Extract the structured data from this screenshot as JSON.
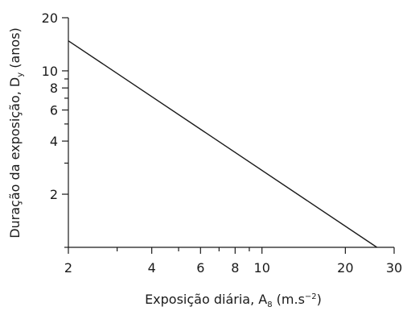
{
  "chart_data": {
    "type": "line",
    "x_scale": "log",
    "y_scale": "log",
    "xlim": [
      2,
      30
    ],
    "ylim": [
      1,
      20
    ],
    "x_ticks": [
      2,
      3,
      4,
      5,
      6,
      7,
      8,
      9,
      10,
      20,
      30
    ],
    "x_tick_labels": [
      "2",
      "",
      "4",
      "",
      "6",
      "",
      "8",
      "",
      "10",
      "20",
      "30"
    ],
    "y_ticks": [
      1,
      2,
      3,
      4,
      5,
      6,
      7,
      8,
      9,
      10,
      20
    ],
    "y_tick_labels": [
      "",
      "2",
      "",
      "4",
      "",
      "6",
      "",
      "8",
      "",
      "10",
      "20"
    ],
    "xlabel": {
      "main": "Exposição diária, A",
      "subscript": "8",
      "unit_prefix": " (m.s",
      "unit_sup": "−2",
      "unit_suffix": ")"
    },
    "ylabel": {
      "main": "Duração da exposição, D",
      "subscript": "y",
      "suffix": " (anos)"
    },
    "series": [
      {
        "x": [
          2,
          26
        ],
        "y": [
          14.8,
          1
        ]
      }
    ],
    "grid": false,
    "legend": "none",
    "colors": {
      "line": "#1a1a1a",
      "axis": "#1a1a1a",
      "text": "#1a1a1a"
    }
  }
}
